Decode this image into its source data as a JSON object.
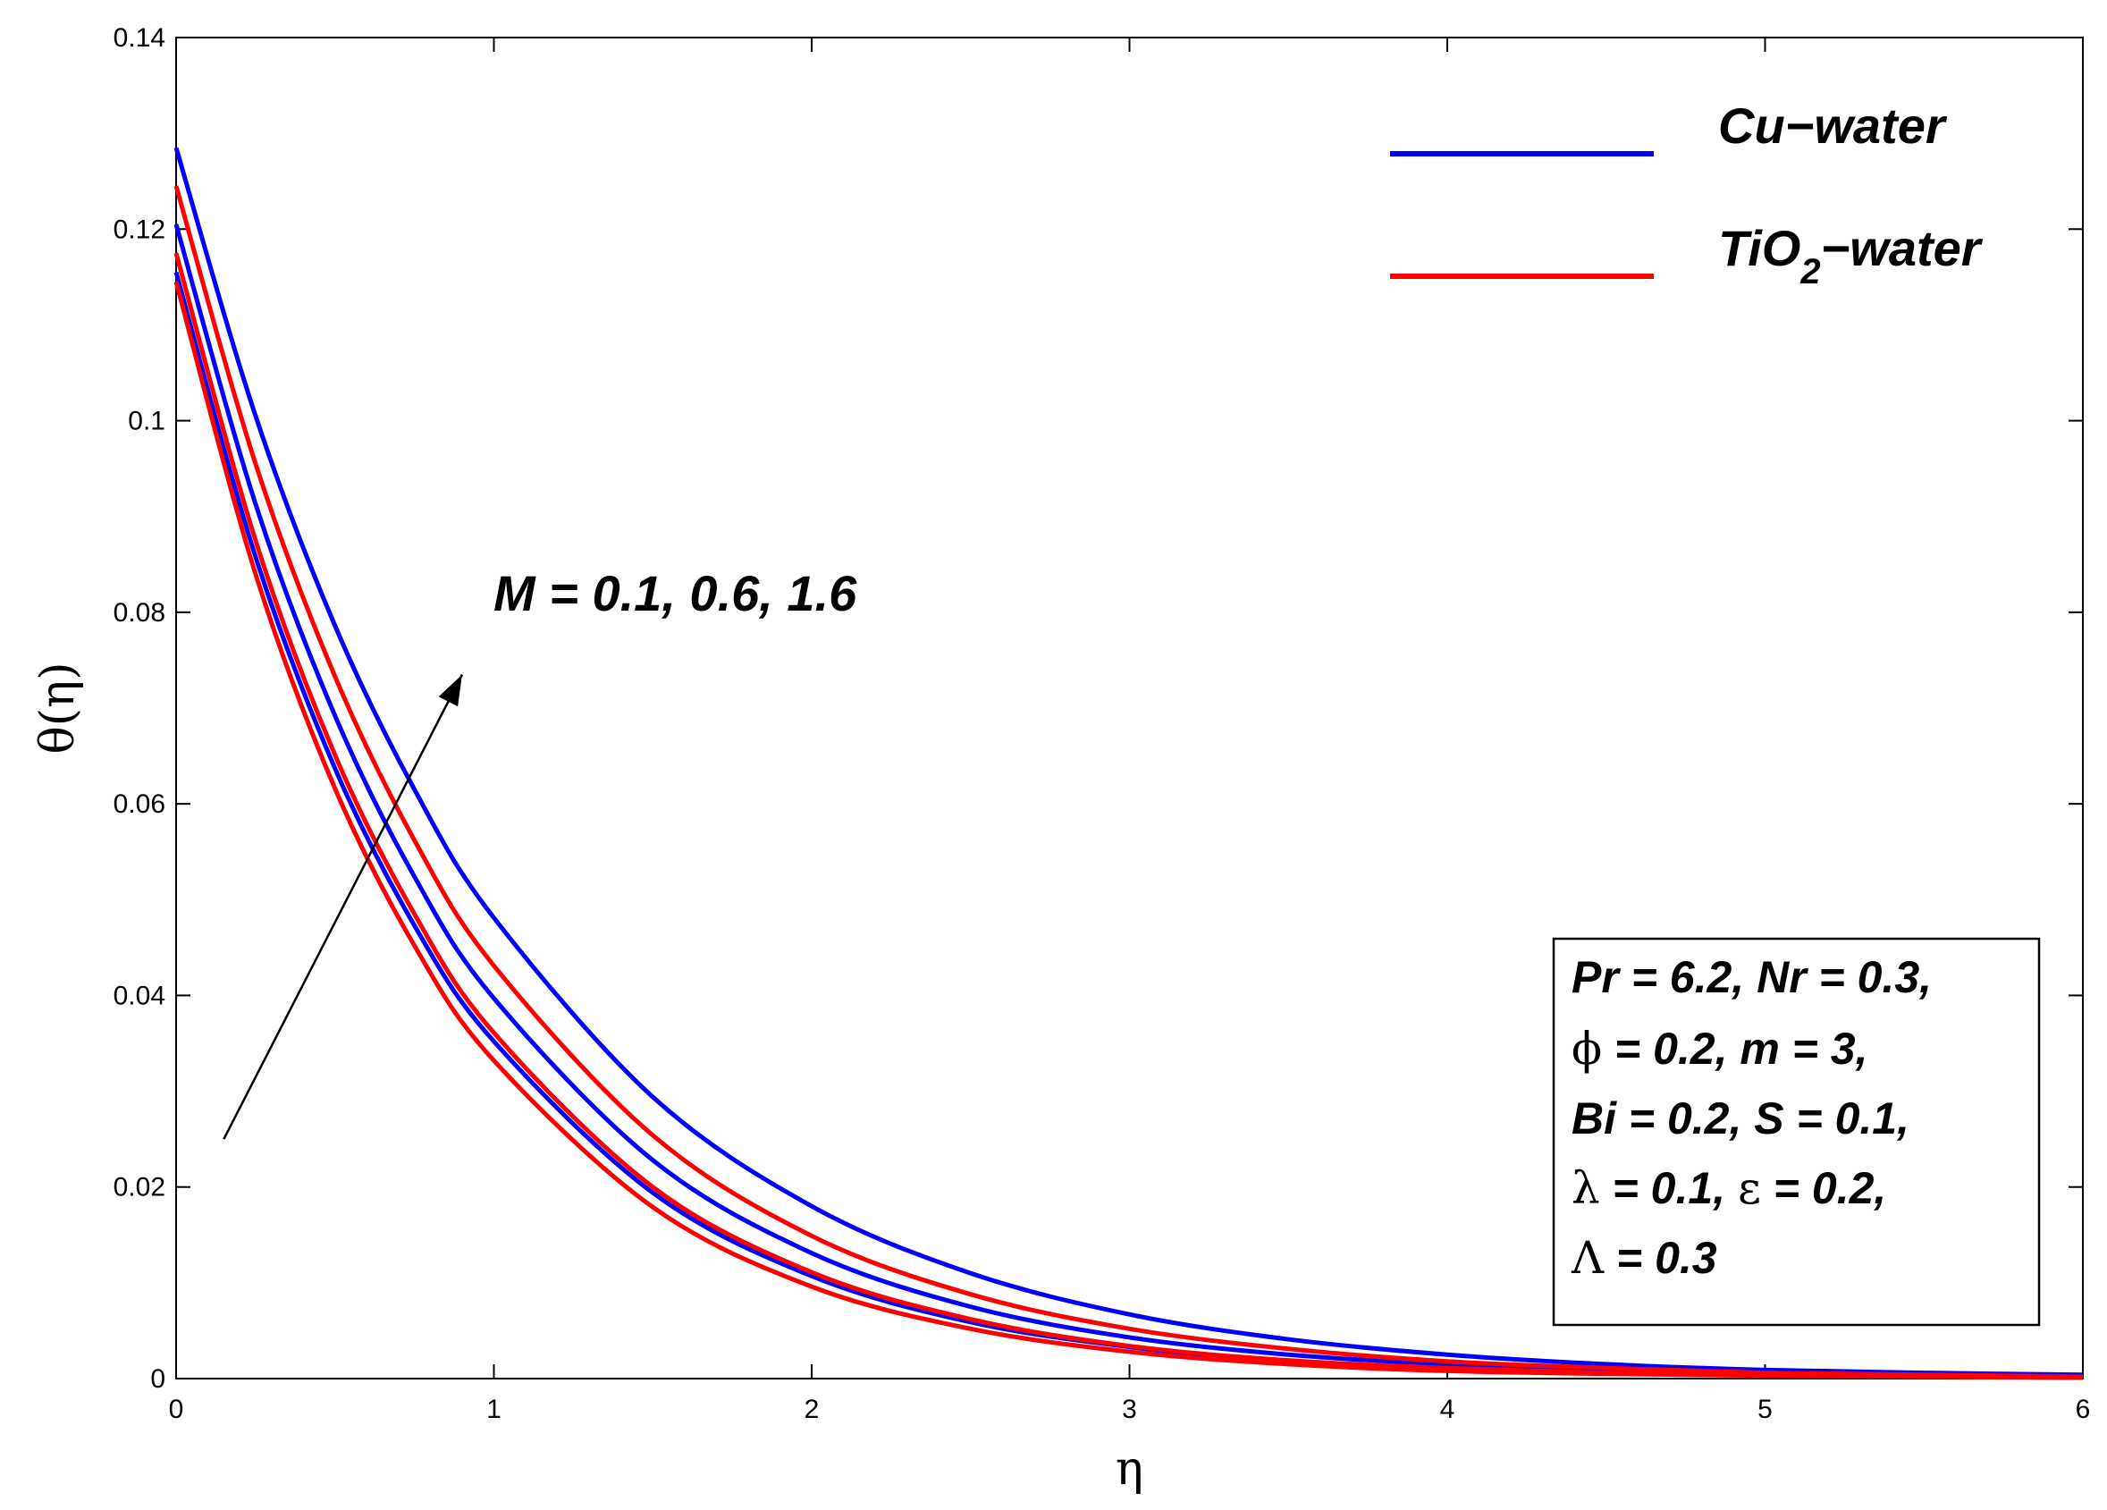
{
  "chart_data": {
    "type": "line",
    "title": "",
    "xlabel": "η",
    "ylabel": "θ(η)",
    "xlim": [
      0,
      6
    ],
    "ylim": [
      0,
      0.14
    ],
    "xticks": [
      0,
      1,
      2,
      3,
      4,
      5,
      6
    ],
    "xtick_labels": [
      "0",
      "1",
      "2",
      "3",
      "4",
      "5",
      "6"
    ],
    "yticks": [
      0,
      0.02,
      0.04,
      0.06,
      0.08,
      0.1,
      0.12,
      0.14
    ],
    "ytick_labels": [
      "0",
      "0.02",
      "0.04",
      "0.06",
      "0.08",
      "0.1",
      "0.12",
      "0.14"
    ],
    "grid": false,
    "legend_position": "top-right",
    "legend": [
      {
        "label_main": "Cu−water",
        "color": "#0000ff"
      },
      {
        "label_pre": "TiO",
        "label_sub": "2",
        "label_post": "−water",
        "color": "#ff0000"
      }
    ],
    "series": [
      {
        "name": "Cu-water, M = 0.1",
        "color": "#0000ff",
        "x": [
          0,
          0.25,
          0.5,
          0.75,
          1,
          1.5,
          2,
          2.5,
          3,
          3.5,
          4,
          4.5,
          5,
          5.5,
          6
        ],
        "y": [
          0.1155,
          0.0858,
          0.0637,
          0.0473,
          0.0352,
          0.0194,
          0.0107,
          0.0059,
          0.0033,
          0.0018,
          0.0011,
          0.0007,
          0.0005,
          0.0003,
          0.0002
        ]
      },
      {
        "name": "Cu-water, M = 0.6",
        "color": "#0000ff",
        "x": [
          0,
          0.25,
          0.5,
          0.75,
          1,
          1.5,
          2,
          2.5,
          3,
          3.5,
          4,
          4.5,
          5,
          5.5,
          6
        ],
        "y": [
          0.1205,
          0.0913,
          0.0692,
          0.0524,
          0.0397,
          0.0228,
          0.0131,
          0.0075,
          0.0043,
          0.0025,
          0.0015,
          0.0009,
          0.0006,
          0.0004,
          0.0002
        ]
      },
      {
        "name": "Cu-water, M = 1.6",
        "color": "#0000ff",
        "x": [
          0,
          0.25,
          0.5,
          0.75,
          1,
          1.5,
          2,
          2.5,
          3,
          3.5,
          4,
          4.5,
          5,
          5.5,
          6
        ],
        "y": [
          0.1285,
          0.1005,
          0.0786,
          0.0615,
          0.0481,
          0.0294,
          0.018,
          0.011,
          0.0067,
          0.0041,
          0.0025,
          0.0015,
          0.0009,
          0.0006,
          0.0004
        ]
      },
      {
        "name": "TiO2-water, M = 0.1",
        "color": "#ff0000",
        "x": [
          0,
          0.25,
          0.5,
          0.75,
          1,
          1.5,
          2,
          2.5,
          3,
          3.5,
          4,
          4.5,
          5,
          5.5,
          6
        ],
        "y": [
          0.1145,
          0.084,
          0.0616,
          0.0452,
          0.0332,
          0.0179,
          0.0096,
          0.0052,
          0.0028,
          0.0015,
          0.0008,
          0.0005,
          0.0003,
          0.0002,
          0.0001
        ]
      },
      {
        "name": "TiO2-water, M = 0.6",
        "color": "#ff0000",
        "x": [
          0,
          0.25,
          0.5,
          0.75,
          1,
          1.5,
          2,
          2.5,
          3,
          3.5,
          4,
          4.5,
          5,
          5.5,
          6
        ],
        "y": [
          0.1175,
          0.0875,
          0.0651,
          0.0485,
          0.0361,
          0.02,
          0.0111,
          0.0062,
          0.0034,
          0.0019,
          0.0011,
          0.0006,
          0.0004,
          0.0002,
          0.0001
        ]
      },
      {
        "name": "TiO2-water, M = 1.6",
        "color": "#ff0000",
        "x": [
          0,
          0.25,
          0.5,
          0.75,
          1,
          1.5,
          2,
          2.5,
          3,
          3.5,
          4,
          4.5,
          5,
          5.5,
          6
        ],
        "y": [
          0.1245,
          0.0955,
          0.0733,
          0.0562,
          0.0431,
          0.0254,
          0.0149,
          0.0088,
          0.0052,
          0.0031,
          0.0018,
          0.0011,
          0.0006,
          0.0004,
          0.0002
        ]
      }
    ],
    "annotation": {
      "text": "M = 0.1, 0.6, 1.6",
      "arrow_from": [
        0.15,
        0.025
      ],
      "arrow_to": [
        0.9,
        0.0735
      ]
    },
    "params_box": {
      "lines": [
        [
          {
            "t": "Pr = 6.2, Nr = 0.3,"
          }
        ],
        [
          {
            "t": "ϕ",
            "sym": true
          },
          {
            "t": " = 0.2, m = 3,"
          }
        ],
        [
          {
            "t": "Bi = 0.2, S = 0.1,"
          }
        ],
        [
          {
            "t": "λ",
            "sym": true
          },
          {
            "t": " = 0.1, "
          },
          {
            "t": "ε",
            "sym": true
          },
          {
            "t": " = 0.2,"
          }
        ],
        [
          {
            "t": "Λ",
            "sym": true
          },
          {
            "t": " = 0.3"
          }
        ]
      ]
    }
  }
}
